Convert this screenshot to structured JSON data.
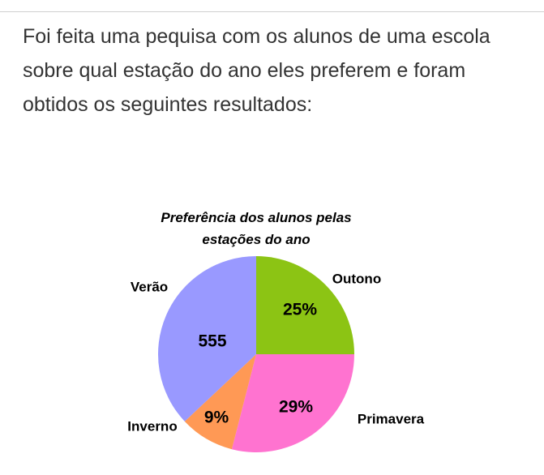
{
  "question": "Foi feita uma pequisa com os alunos de uma escola sobre qual estação do ano eles preferem e foram obtidos os seguintes resultados:",
  "chart_data": {
    "type": "pie",
    "title": "Preferência dos alunos pelas estações do ano",
    "categories": [
      "Outono",
      "Primavera",
      "Inverno",
      "Verão"
    ],
    "values": [
      25,
      29,
      9,
      37
    ],
    "value_labels": [
      "25%",
      "29%",
      "9%",
      null
    ],
    "annotation": "555",
    "colors": [
      "#8cc414",
      "#ff73d0",
      "#ff9955",
      "#9999ff"
    ]
  }
}
